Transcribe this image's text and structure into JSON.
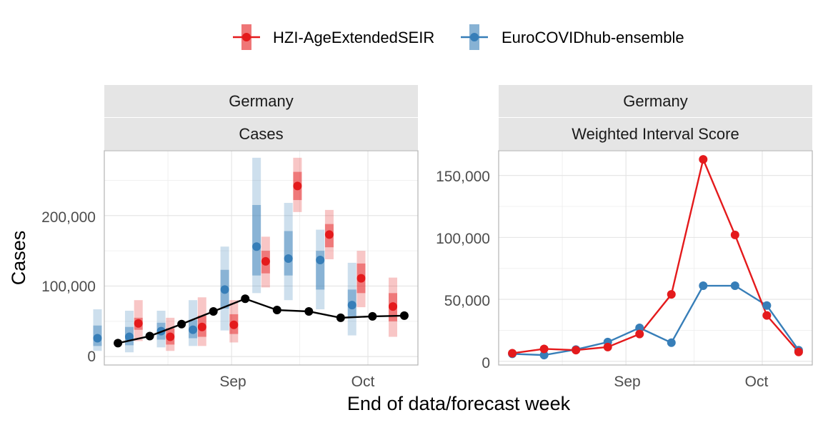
{
  "legend": {
    "items": [
      {
        "label": "HZI-AgeExtendedSEIR",
        "color": "#E41A1C"
      },
      {
        "label": "EuroCOVIDhub-ensemble",
        "color": "#377EB8"
      }
    ]
  },
  "xlabel": "End of data/forecast week",
  "chart_data": [
    {
      "type": "line",
      "strip_top": "Germany",
      "strip_bottom": "Cases",
      "ylabel": "Cases",
      "x_ticks": [
        "Sep",
        "Oct"
      ],
      "y_ticks": [
        "0",
        "100,000",
        "200,000"
      ],
      "y_tick_values": [
        0,
        100000,
        200000
      ],
      "ylim": [
        -12000,
        292000
      ],
      "dates": [
        "2021-08-07",
        "2021-08-14",
        "2021-08-21",
        "2021-08-28",
        "2021-09-04",
        "2021-09-11",
        "2021-09-18",
        "2021-09-25",
        "2021-10-02",
        "2021-10-09"
      ],
      "observed": {
        "name": "observed",
        "color": "#000000",
        "values": [
          19000,
          29000,
          46000,
          64000,
          82000,
          66000,
          64000,
          55000,
          57000,
          58000
        ]
      },
      "series": [
        {
          "name": "HZI-AgeExtendedSEIR",
          "color": "#E41A1C",
          "forecast_dates": [
            "2021-08-14",
            "2021-08-21",
            "2021-08-28",
            "2021-09-04",
            "2021-09-11",
            "2021-09-18",
            "2021-09-25",
            "2021-10-02",
            "2021-10-09"
          ],
          "median": [
            47000,
            28000,
            42000,
            45000,
            135000,
            242000,
            173000,
            111000,
            71000
          ],
          "inner": [
            [
              38000,
              55000
            ],
            [
              17000,
              40000
            ],
            [
              28000,
              58000
            ],
            [
              32000,
              60000
            ],
            [
              118000,
              150000
            ],
            [
              222000,
              262000
            ],
            [
              155000,
              188000
            ],
            [
              90000,
              132000
            ],
            [
              50000,
              90000
            ]
          ],
          "outer": [
            [
              22000,
              80000
            ],
            [
              8000,
              55000
            ],
            [
              15000,
              84000
            ],
            [
              20000,
              80000
            ],
            [
              98000,
              170000
            ],
            [
              205000,
              282000
            ],
            [
              138000,
              208000
            ],
            [
              70000,
              150000
            ],
            [
              28000,
              112000
            ]
          ]
        },
        {
          "name": "EuroCOVIDhub-ensemble",
          "color": "#377EB8",
          "forecast_dates": [
            "2021-08-14",
            "2021-08-21",
            "2021-08-28",
            "2021-09-04",
            "2021-09-11",
            "2021-09-18",
            "2021-09-25",
            "2021-10-02",
            "2021-10-09"
          ],
          "median": [
            26000,
            28000,
            36000,
            38000,
            95000,
            156000,
            139000,
            137000,
            73000
          ],
          "inner": [
            [
              15000,
              44000
            ],
            [
              16000,
              42000
            ],
            [
              24000,
              48000
            ],
            [
              26000,
              52000
            ],
            [
              68000,
              123000
            ],
            [
              115000,
              215000
            ],
            [
              115000,
              178000
            ],
            [
              95000,
              150000
            ],
            [
              55000,
              95000
            ]
          ],
          "outer": [
            [
              8000,
              67000
            ],
            [
              6000,
              65000
            ],
            [
              13000,
              65000
            ],
            [
              15000,
              80000
            ],
            [
              37000,
              156000
            ],
            [
              90000,
              282000
            ],
            [
              80000,
              218000
            ],
            [
              67000,
              180000
            ],
            [
              30000,
              133000
            ]
          ]
        }
      ]
    },
    {
      "type": "line",
      "strip_top": "Germany",
      "strip_bottom": "Weighted Interval Score",
      "x_ticks": [
        "Sep",
        "Oct"
      ],
      "y_ticks": [
        "0",
        "50,000",
        "100,000",
        "150,000"
      ],
      "y_tick_values": [
        0,
        50000,
        100000,
        150000
      ],
      "ylim": [
        -3000,
        170000
      ],
      "dates": [
        "2021-08-07",
        "2021-08-14",
        "2021-08-21",
        "2021-08-28",
        "2021-09-04",
        "2021-09-11",
        "2021-09-18",
        "2021-09-25",
        "2021-10-02",
        "2021-10-09"
      ],
      "series": [
        {
          "name": "HZI-AgeExtendedSEIR",
          "color": "#E41A1C",
          "values": [
            6500,
            10000,
            9000,
            11500,
            22000,
            54000,
            163000,
            102000,
            37000,
            7500
          ]
        },
        {
          "name": "EuroCOVIDhub-ensemble",
          "color": "#377EB8",
          "values": [
            6000,
            5000,
            9500,
            15500,
            27000,
            15000,
            61000,
            61000,
            45000,
            9000
          ]
        }
      ]
    }
  ]
}
